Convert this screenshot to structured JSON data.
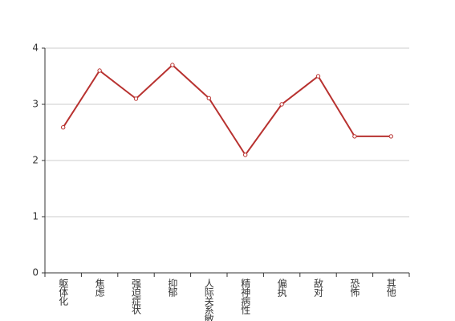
{
  "chart_data": {
    "type": "line",
    "categories": [
      "躯体化",
      "焦虑",
      "强迫症状",
      "抑郁",
      "人际关系敏感",
      "精神病性",
      "偏执",
      "敌对",
      "恐怖",
      "其他"
    ],
    "values": [
      2.59,
      3.6,
      3.1,
      3.7,
      3.11,
      2.1,
      3.0,
      3.5,
      2.43,
      2.43
    ],
    "color": "#b83230",
    "ylim": [
      0,
      4
    ],
    "yticks": [
      0,
      1,
      2,
      3,
      4
    ],
    "grid": true
  }
}
